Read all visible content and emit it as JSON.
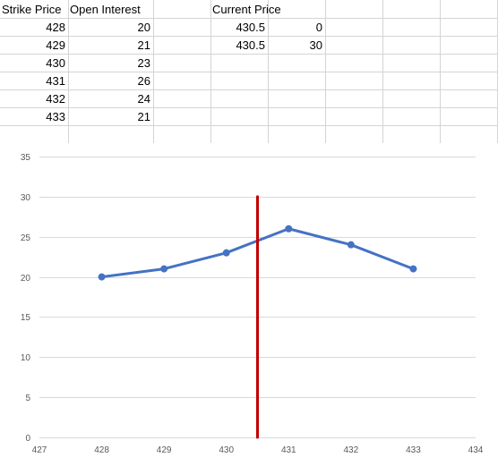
{
  "sheet": {
    "headers": {
      "strike_price": "Strike Price",
      "open_interest": "Open Interest",
      "current_price": "Current Price"
    },
    "rows": [
      {
        "strike": "428",
        "oi": "20"
      },
      {
        "strike": "429",
        "oi": "21"
      },
      {
        "strike": "430",
        "oi": "23"
      },
      {
        "strike": "431",
        "oi": "26"
      },
      {
        "strike": "432",
        "oi": "24"
      },
      {
        "strike": "433",
        "oi": "21"
      }
    ],
    "current_price_rows": [
      {
        "x": "430.5",
        "y": "0"
      },
      {
        "x": "430.5",
        "y": "30"
      }
    ]
  },
  "chart_data": {
    "type": "scatter",
    "xlim": [
      427,
      434
    ],
    "ylim": [
      0,
      35
    ],
    "x_ticks": [
      427,
      428,
      429,
      430,
      431,
      432,
      433,
      434
    ],
    "y_ticks": [
      0,
      5,
      10,
      15,
      20,
      25,
      30,
      35
    ],
    "grid": "horizontal",
    "series": [
      {
        "color": "#4472c4",
        "mode": "lines+markers",
        "x": [
          428,
          429,
          430,
          431,
          432,
          433
        ],
        "y": [
          20,
          21,
          23,
          26,
          24,
          21
        ]
      },
      {
        "color": "#c00000",
        "mode": "lines",
        "x": [
          430.5,
          430.5
        ],
        "y": [
          0,
          30
        ]
      }
    ]
  }
}
